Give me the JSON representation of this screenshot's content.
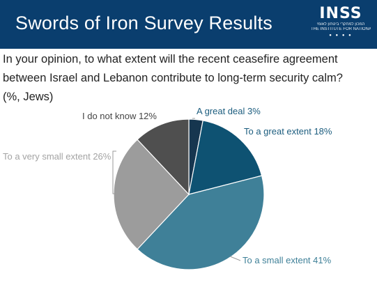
{
  "header": {
    "title": "Swords of Iron Survey Results",
    "logo": {
      "wordmark": "INSS",
      "subtitle_hebrew": "המכון למחקרי ביטחון לאומי",
      "subtitle_english": "THE INSTITUTE FOR NATIONAL SECURITY STUDIES"
    },
    "background_color": "#0a3e6e"
  },
  "question": {
    "line1": "In your opinion, to what extent will the recent ceasefire agreement",
    "line2": "between Israel and Lebanon contribute to long-term security calm?",
    "line3": "(%, Jews)"
  },
  "chart_data": {
    "type": "pie",
    "title": "",
    "start_angle_deg": 0,
    "direction": "clockwise",
    "slices": [
      {
        "label": "A great deal 3%",
        "value": 3,
        "color": "#16364f",
        "label_color": "#1b5c7e"
      },
      {
        "label": "To a great extent 18%",
        "value": 18,
        "color": "#0e5272",
        "label_color": "#1b5c7e"
      },
      {
        "label": "To a small extent 41%",
        "value": 41,
        "color": "#3f8098",
        "label_color": "#3f8098"
      },
      {
        "label": "To a very small extent 26%",
        "value": 26,
        "color": "#9c9c9c",
        "label_color": "#a3a3a3"
      },
      {
        "label": "I do not know 12%",
        "value": 12,
        "color": "#4f4f4f",
        "label_color": "#444444"
      }
    ]
  }
}
